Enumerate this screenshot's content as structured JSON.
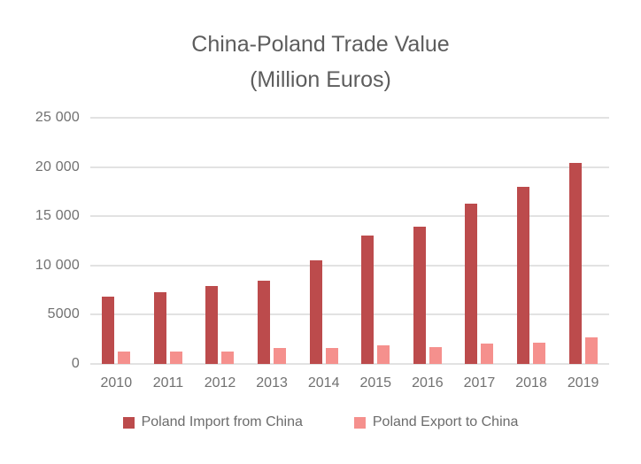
{
  "title": {
    "line1": "China-Poland Trade Value",
    "line2": "(Million Euros)"
  },
  "chart_data": {
    "type": "bar",
    "title": "China-Poland Trade Value (Million Euros)",
    "categories": [
      "2010",
      "2011",
      "2012",
      "2013",
      "2014",
      "2015",
      "2016",
      "2017",
      "2018",
      "2019"
    ],
    "series": [
      {
        "name": "Poland Import from China",
        "color": "#bc4b4c",
        "values": [
          6800,
          7300,
          7900,
          8450,
          10550,
          13050,
          13950,
          16300,
          17950,
          20450
        ]
      },
      {
        "name": "Poland Export to China",
        "color": "#f5908d",
        "values": [
          1250,
          1250,
          1300,
          1650,
          1650,
          1850,
          1700,
          2050,
          2200,
          2700
        ]
      }
    ],
    "xlabel": "",
    "ylabel": "",
    "ylim": [
      0,
      25000
    ],
    "ytick_step": 5000,
    "ytick_labels_top_to_bottom": [
      "25 000",
      "20 000",
      "15 000",
      "10 000",
      "5000",
      "0"
    ],
    "grid": true,
    "legend_position": "bottom"
  },
  "colors": {
    "background": "#ffffff",
    "gridline": "#e2e2e2",
    "title_text": "#5d5d5d",
    "axis_text": "#717171",
    "legend_text": "#6c6c6c"
  }
}
